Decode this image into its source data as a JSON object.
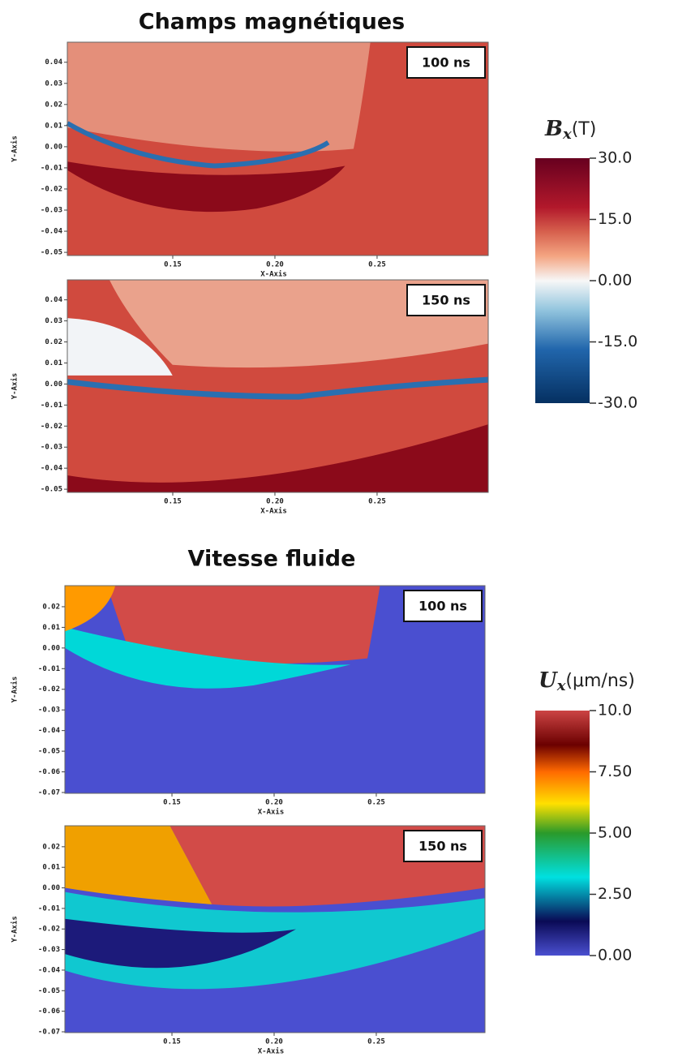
{
  "sections": [
    {
      "title": "Champs magnétiques",
      "x_axis_label": "X-Axis",
      "y_axis_label": "Y-Axis",
      "xlim": [
        0.0984,
        0.3044
      ],
      "ylim": [
        -0.0515,
        0.0495
      ],
      "xticks": [
        0.15,
        {
          "value": 0.2,
          "label": "0.20"
        },
        0.25
      ],
      "yticks": [
        0.04,
        0.03,
        0.02,
        0.01,
        {
          "value": 0,
          "label": "0.00"
        },
        -0.01,
        -0.02,
        -0.03,
        -0.04,
        -0.05
      ],
      "panels": [
        {
          "time": "100 ns"
        },
        {
          "time": "150 ns"
        }
      ],
      "colorbar": {
        "symbol": "B",
        "subscript": "x",
        "unit": "(T)",
        "lim": [
          -30,
          30
        ],
        "ticks": [
          {
            "value": 30,
            "label": "30.0"
          },
          {
            "value": 15,
            "label": "15.0"
          },
          {
            "value": 0,
            "label": "0.00"
          },
          {
            "value": -15,
            "label": "-15.0"
          },
          {
            "value": -30,
            "label": "-30.0"
          }
        ]
      }
    },
    {
      "title": "Vitesse fluide",
      "x_axis_label": "X-Axis",
      "y_axis_label": "Y-Axis",
      "xlim": [
        0.0976,
        0.3032
      ],
      "ylim": [
        -0.0704,
        0.0302
      ],
      "xticks": [
        0.15,
        {
          "value": 0.2,
          "label": "0.20"
        },
        0.25
      ],
      "yticks": [
        0.02,
        0.01,
        {
          "value": 0,
          "label": "0.00"
        },
        -0.01,
        -0.02,
        -0.03,
        -0.04,
        -0.05,
        -0.06,
        -0.07
      ],
      "panels": [
        {
          "time": "100 ns"
        },
        {
          "time": "150 ns"
        }
      ],
      "colorbar": {
        "symbol": "U",
        "subscript": "x",
        "unit": "(μm/ns)",
        "lim": [
          0,
          10
        ],
        "ticks": [
          {
            "value": 10,
            "label": "10.0"
          },
          {
            "value": 7.5,
            "label": "7.50"
          },
          {
            "value": 5,
            "label": "5.00"
          },
          {
            "value": 2.5,
            "label": "2.50"
          },
          {
            "value": 0,
            "label": "0.00"
          }
        ]
      }
    }
  ]
}
